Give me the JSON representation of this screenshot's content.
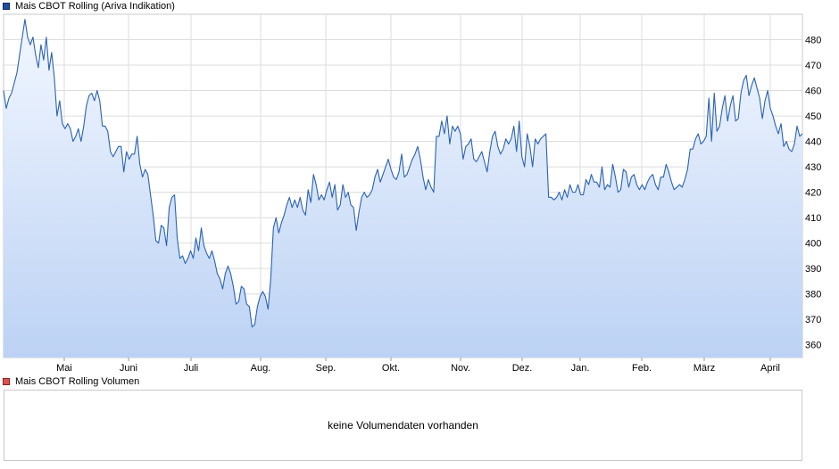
{
  "legend": {
    "price_label": "Mais CBOT Rolling (Ariva Indikation)",
    "price_color": "#1f4e9c",
    "volume_label": "Mais CBOT Rolling Volumen",
    "volume_color": "#e05050"
  },
  "volume_panel": {
    "message": "keine Volumendaten vorhanden"
  },
  "chart_data": {
    "type": "area",
    "title": "Mais CBOT Rolling (Ariva Indikation)",
    "xlabel": "",
    "ylabel": "",
    "ylim": [
      355,
      490
    ],
    "yticks": [
      360,
      370,
      380,
      390,
      400,
      410,
      420,
      430,
      440,
      450,
      460,
      470,
      480
    ],
    "xticks": [
      "Mai",
      "Juni",
      "Juli",
      "Aug.",
      "Sep.",
      "Okt.",
      "Nov.",
      "Dez.",
      "Jan.",
      "Feb.",
      "März",
      "April"
    ],
    "grid": true,
    "line_color": "#2a62b5",
    "fill_top_color": "#f2f7ff",
    "fill_bottom_color": "#bcd2f4",
    "series": [
      {
        "values": [
          460,
          453,
          457,
          459,
          463,
          467,
          474,
          481,
          488,
          481,
          478,
          481,
          474,
          469,
          478,
          472,
          481,
          468,
          475,
          465,
          450,
          456,
          447,
          445,
          447,
          445,
          440,
          442,
          445,
          440,
          446,
          454,
          458,
          459,
          456,
          460,
          456,
          446,
          446,
          444,
          436,
          434,
          436,
          438,
          438,
          428,
          436,
          433,
          435,
          435,
          442,
          431,
          426,
          429,
          427,
          419,
          411,
          401,
          400,
          407,
          406,
          399,
          414,
          418,
          419,
          402,
          394,
          395,
          392,
          394,
          397,
          394,
          402,
          397,
          406,
          399,
          396,
          394,
          397,
          393,
          388,
          386,
          382,
          388,
          391,
          388,
          383,
          376,
          377,
          383,
          382,
          376,
          375,
          367,
          368,
          375,
          379,
          381,
          379,
          374,
          386,
          406,
          410,
          404,
          408,
          411,
          415,
          418,
          414,
          417,
          414,
          418,
          413,
          411,
          421,
          416,
          427,
          423,
          417,
          419,
          417,
          421,
          424,
          418,
          423,
          413,
          415,
          423,
          418,
          420,
          415,
          414,
          405,
          412,
          418,
          420,
          418,
          419,
          421,
          426,
          429,
          424,
          427,
          430,
          433,
          429,
          426,
          425,
          428,
          435,
          426,
          427,
          430,
          433,
          435,
          438,
          433,
          426,
          421,
          425,
          422,
          420,
          442,
          442,
          448,
          443,
          450,
          439,
          446,
          444,
          446,
          443,
          433,
          438,
          439,
          441,
          433,
          432,
          434,
          436,
          432,
          428,
          436,
          442,
          444,
          438,
          435,
          437,
          441,
          439,
          441,
          446,
          436,
          448,
          434,
          430,
          443,
          438,
          430,
          441,
          439,
          441,
          442,
          443,
          418,
          418,
          417,
          418,
          420,
          417,
          421,
          418,
          423,
          420,
          420,
          423,
          419,
          419,
          425,
          423,
          427,
          424,
          424,
          422,
          430,
          421,
          423,
          422,
          431,
          426,
          420,
          421,
          429,
          428,
          422,
          426,
          427,
          423,
          421,
          423,
          421,
          424,
          426,
          427,
          423,
          421,
          426,
          426,
          431,
          428,
          424,
          421,
          422,
          423,
          422,
          425,
          429,
          437,
          437,
          441,
          443,
          439,
          440,
          442,
          457,
          440,
          459,
          444,
          446,
          453,
          458,
          448,
          454,
          458,
          448,
          449,
          459,
          464,
          466,
          458,
          462,
          465,
          461,
          457,
          449,
          456,
          460,
          453,
          450,
          446,
          443,
          447,
          438,
          440,
          437,
          436,
          439,
          446,
          442,
          443
        ],
        "note": "first value at left plot edge, last value at right plot edge"
      }
    ]
  }
}
